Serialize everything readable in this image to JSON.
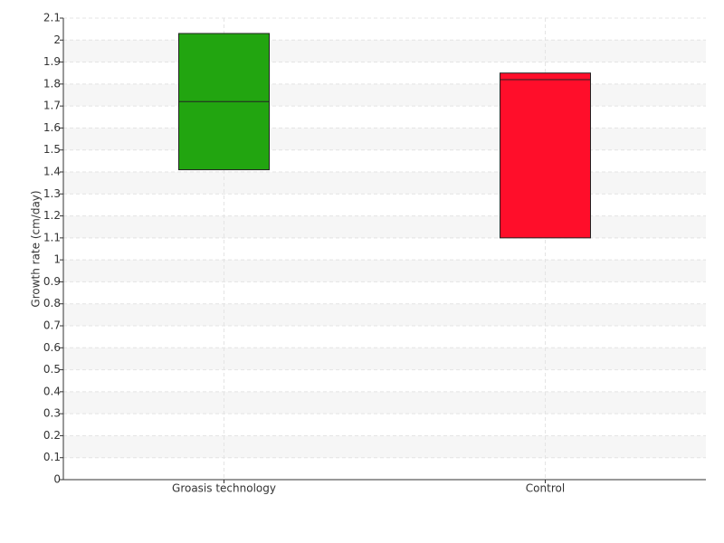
{
  "chart_data": {
    "type": "box",
    "y_label": "Growth rate (cm/day)",
    "categories": [
      "Groasis technology",
      "Control"
    ],
    "boxes": [
      {
        "low": 1.41,
        "median": 1.72,
        "high": 2.03,
        "color": "#22a510"
      },
      {
        "low": 1.1,
        "median": 1.82,
        "high": 1.85,
        "color": "#ff0e2a"
      }
    ],
    "ylim": [
      0,
      2.1
    ],
    "yticks": [
      0,
      0.1,
      0.2,
      0.3,
      0.4,
      0.5,
      0.6,
      0.7,
      0.8,
      0.9,
      1,
      1.1,
      1.2,
      1.3,
      1.4,
      1.5,
      1.6,
      1.7,
      1.8,
      1.9,
      2,
      2.1
    ],
    "grid": true
  }
}
